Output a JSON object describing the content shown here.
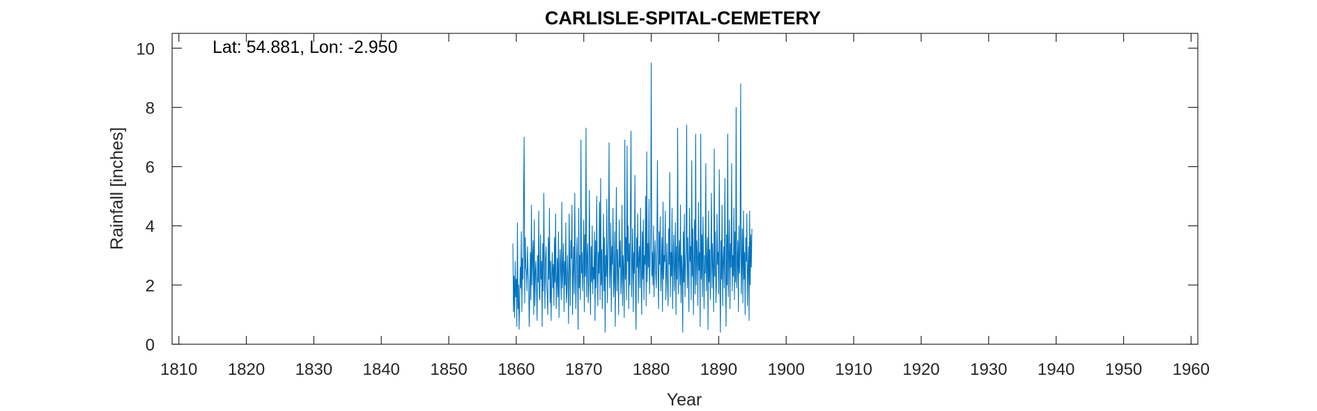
{
  "chart_data": {
    "type": "line",
    "title": "CARLISLE-SPITAL-CEMETERY",
    "annotation": "Lat: 54.881, Lon: -2.950",
    "xlabel": "Year",
    "ylabel": "Rainfall [inches]",
    "xlim": [
      1809,
      1961
    ],
    "ylim": [
      0,
      10.5
    ],
    "xticks": [
      1810,
      1820,
      1830,
      1840,
      1850,
      1860,
      1870,
      1880,
      1890,
      1900,
      1910,
      1920,
      1930,
      1940,
      1950,
      1960
    ],
    "yticks": [
      0,
      2,
      4,
      6,
      8,
      10
    ],
    "grid": false,
    "series_color": "#0072BD",
    "series": [
      {
        "x_start": 1859.5,
        "step": 0.0833333,
        "values": [
          3.4,
          1.1,
          2.3,
          0.9,
          2.8,
          1.6,
          2.2,
          0.6,
          4.1,
          1.2,
          2.0,
          0.5,
          1.5,
          2.6,
          1.9,
          3.8,
          1.1,
          2.9,
          2.2,
          4.9,
          7.0,
          1.4,
          3.6,
          2.6,
          2.5,
          1.8,
          3.3,
          2.5,
          2.1,
          0.6,
          1.7,
          3.1,
          1.5,
          4.7,
          2.0,
          3.0,
          3.5,
          1.0,
          4.2,
          1.3,
          2.4,
          2.8,
          1.9,
          0.8,
          3.0,
          2.1,
          4.5,
          1.6,
          1.5,
          3.7,
          2.2,
          2.8,
          0.6,
          3.4,
          1.8,
          5.1,
          2.6,
          1.2,
          2.9,
          3.3,
          2.0,
          1.7,
          1.0,
          3.6,
          2.2,
          4.6,
          1.4,
          2.8,
          0.8,
          2.3,
          3.1,
          1.9,
          2.7,
          1.3,
          3.6,
          2.1,
          4.4,
          1.2,
          2.0,
          2.9,
          1.6,
          3.8,
          0.9,
          2.5,
          3.2,
          2.4,
          1.5,
          4.8,
          1.9,
          2.6,
          3.4,
          1.1,
          2.8,
          2.0,
          4.1,
          1.4,
          1.8,
          3.0,
          2.2,
          0.7,
          4.4,
          2.6,
          1.3,
          3.5,
          2.9,
          4.7,
          1.0,
          2.4,
          3.3,
          1.7,
          5.1,
          2.5,
          1.2,
          2.8,
          3.6,
          2.0,
          0.5,
          4.6,
          1.9,
          3.0,
          1.5,
          6.9,
          2.4,
          3.1,
          1.8,
          2.6,
          4.2,
          1.1,
          3.7,
          2.3,
          7.3,
          1.6,
          2.9,
          3.4,
          1.4,
          2.0,
          5.2,
          2.7,
          1.0,
          3.3,
          2.1,
          4.0,
          1.7,
          2.6,
          2.2,
          3.8,
          0.8,
          3.5,
          1.9,
          5.0,
          2.7,
          1.3,
          3.1,
          2.4,
          4.8,
          1.5,
          5.6,
          2.0,
          3.2,
          1.2,
          2.6,
          4.4,
          1.8,
          3.6,
          0.4,
          3.0,
          2.3,
          4.9,
          1.4,
          2.8,
          3.5,
          6.8,
          1.9,
          2.5,
          4.1,
          1.1,
          3.3,
          2.7,
          4.6,
          1.6,
          2.1,
          3.8,
          0.6,
          2.9,
          5.3,
          1.8,
          3.2,
          2.4,
          1.0,
          4.2,
          2.6,
          3.5,
          1.7,
          2.2,
          4.7,
          1.3,
          3.0,
          2.5,
          0.9,
          6.9,
          2.2,
          3.6,
          1.5,
          6.7,
          2.8,
          4.0,
          1.2,
          3.4,
          2.0,
          4.5,
          7.2,
          1.6,
          2.7,
          3.9,
          1.1,
          3.1,
          2.4,
          5.7,
          1.8,
          0.5,
          3.6,
          2.6,
          4.4,
          1.4,
          2.9,
          3.3,
          1.9,
          4.6,
          2.5,
          1.0,
          3.8,
          2.2,
          4.2,
          1.5,
          3.0,
          2.7,
          5.0,
          1.3,
          6.5,
          2.1,
          3.4,
          2.6,
          4.9,
          1.7,
          2.8,
          3.7,
          9.5,
          2.3,
          3.1,
          2.0,
          4.0,
          1.6,
          2.9,
          3.5,
          2.4,
          1.9,
          3.3,
          6.2,
          2.6,
          1.2,
          3.8,
          2.7,
          4.3,
          1.8,
          2.5,
          3.6,
          1.1,
          4.8,
          2.2,
          3.0,
          2.8,
          4.5,
          1.5,
          2.4,
          3.4,
          2.0,
          1.3,
          3.9,
          2.7,
          5.8,
          1.6,
          3.1,
          2.3,
          4.6,
          1.2,
          2.9,
          3.7,
          1.8,
          2.6,
          4.1,
          1.0,
          3.3,
          2.2,
          7.3,
          1.7,
          2.8,
          3.5,
          2.0,
          4.7,
          1.4,
          3.0,
          2.5,
          0.4,
          3.8,
          2.1,
          4.4,
          1.6,
          2.7,
          3.2,
          7.4,
          1.9,
          3.6,
          2.4,
          1.1,
          4.6,
          2.8,
          3.3,
          1.5,
          6.2,
          2.3,
          3.9,
          1.0,
          2.6,
          4.2,
          1.7,
          7.1,
          2.0,
          3.5,
          2.9,
          1.3,
          4.8,
          2.5,
          3.1,
          0.6,
          7.1,
          2.2,
          3.7,
          1.6,
          4.3,
          2.8,
          1.2,
          3.0,
          2.4,
          6.1,
          1.8,
          2.7,
          3.6,
          0.5,
          4.5,
          2.1,
          3.2,
          1.5,
          2.9,
          5.1,
          1.9,
          3.4,
          2.6,
          1.1,
          6.6,
          2.3,
          3.8,
          1.4,
          2.0,
          4.4,
          2.7,
          3.1,
          1.7,
          5.9,
          2.4,
          0.4,
          3.5,
          2.2,
          4.7,
          1.3,
          2.8,
          3.3,
          1.9,
          5.6,
          2.5,
          0.6,
          3.7,
          2.0,
          7.1,
          1.6,
          2.9,
          4.2,
          1.2,
          3.4,
          2.6,
          6.1,
          1.8,
          3.0,
          2.3,
          4.6,
          1.5,
          3.8,
          2.1,
          8.0,
          1.9,
          2.7,
          3.5,
          1.1,
          4.0,
          2.4,
          3.2,
          8.8,
          1.7,
          2.6,
          3.9,
          1.4,
          4.5,
          2.2,
          3.1,
          1.0,
          3.6,
          2.8,
          4.4,
          1.3,
          2.5,
          3.3,
          0.8,
          4.5,
          2.0,
          3.7,
          2.6,
          3.9
        ]
      }
    ]
  }
}
